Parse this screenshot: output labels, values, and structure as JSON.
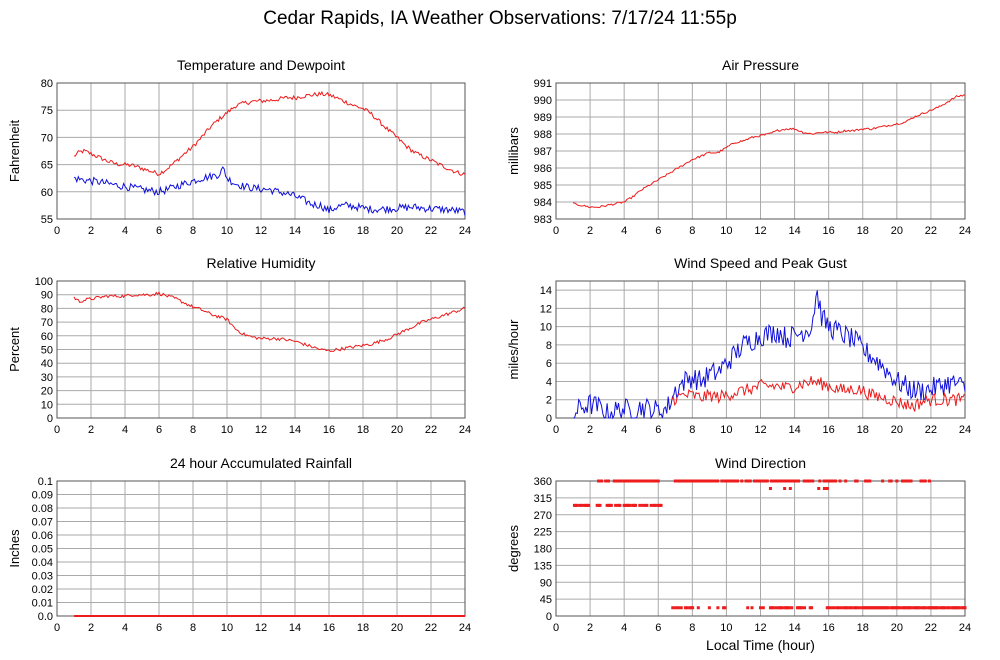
{
  "page": {
    "title": "Cedar Rapids, IA Weather Observations: 7/17/24 11:55p"
  },
  "colors": {
    "red": "#ee1c1c",
    "blue": "#1010dd",
    "grid": "#aaaaaa",
    "frame": "#555555"
  },
  "chart_data": [
    {
      "id": "temp",
      "type": "line",
      "title": "Temperature and Dewpoint",
      "xlabel": "",
      "ylabel": "Fahrenheit",
      "xlim": [
        0,
        24
      ],
      "ylim": [
        55,
        80
      ],
      "xticks": [
        0,
        2,
        4,
        6,
        8,
        10,
        12,
        14,
        16,
        18,
        20,
        22,
        24
      ],
      "yticks": [
        55,
        60,
        65,
        70,
        75,
        80
      ],
      "grid": true,
      "series": [
        {
          "color": "red",
          "noise": 0.4,
          "x": [
            1,
            1.3,
            1.6,
            2,
            2.5,
            3,
            3.5,
            4,
            4.5,
            5,
            5.5,
            6,
            6.5,
            7,
            7.5,
            8,
            8.5,
            9,
            9.5,
            10,
            10.5,
            11,
            11.5,
            12,
            12.5,
            13,
            13.5,
            14,
            14.5,
            15,
            15.5,
            16,
            16.5,
            17,
            17.5,
            18,
            18.5,
            19,
            19.5,
            20,
            20.5,
            21,
            21.5,
            22,
            22.5,
            23,
            23.5,
            24
          ],
          "y": [
            66.5,
            67.3,
            67.5,
            67,
            66.3,
            65.6,
            65.1,
            65,
            64.8,
            64.3,
            63.8,
            63.3,
            64.3,
            65.6,
            67,
            68.3,
            70,
            71.8,
            73.3,
            74.5,
            75.8,
            76.3,
            76.6,
            76.7,
            76.8,
            77,
            77.3,
            77.3,
            77.6,
            77.8,
            78,
            77.8,
            77.2,
            76.5,
            75.8,
            75.3,
            74.3,
            72.8,
            71.3,
            70,
            68.5,
            67.3,
            66.5,
            65.8,
            65,
            64.3,
            63.6,
            63.2
          ]
        },
        {
          "color": "blue",
          "noise": 0.7,
          "x": [
            1,
            1.5,
            2,
            2.5,
            3,
            3.5,
            4,
            4.5,
            5,
            5.5,
            6,
            6.5,
            7,
            7.5,
            8,
            8.5,
            9,
            9.5,
            9.8,
            10,
            10.5,
            11,
            11.5,
            12,
            12.5,
            13,
            13.5,
            14,
            14.5,
            15,
            15.5,
            16,
            16.5,
            17,
            17.5,
            18,
            18.5,
            19,
            19.5,
            20,
            20.5,
            21,
            21.5,
            22,
            22.5,
            23,
            23.5,
            24
          ],
          "y": [
            62.5,
            62.2,
            62,
            61.8,
            61.5,
            61.2,
            61,
            60.7,
            60.4,
            60.2,
            60,
            60.4,
            61,
            61.5,
            62,
            62.5,
            62.8,
            63.2,
            64.3,
            62.5,
            61.5,
            61,
            60.7,
            60.5,
            60.4,
            60,
            59.7,
            59.2,
            58.5,
            57.7,
            57.5,
            56.5,
            57.3,
            57.5,
            57.3,
            57,
            56.8,
            56.8,
            56.9,
            57,
            57.1,
            57.2,
            57,
            56.9,
            56.8,
            56.7,
            56.5,
            56.3
          ]
        }
      ]
    },
    {
      "id": "pressure",
      "type": "line",
      "title": "Air Pressure",
      "xlabel": "",
      "ylabel": "millibars",
      "xlim": [
        0,
        24
      ],
      "ylim": [
        983,
        991
      ],
      "xticks": [
        0,
        2,
        4,
        6,
        8,
        10,
        12,
        14,
        16,
        18,
        20,
        22,
        24
      ],
      "yticks": [
        983,
        984,
        985,
        986,
        987,
        988,
        989,
        990,
        991
      ],
      "grid": true,
      "series": [
        {
          "color": "red",
          "noise": 0.06,
          "x": [
            1,
            1.5,
            2,
            2.5,
            3,
            3.5,
            4,
            4.5,
            5,
            5.5,
            6,
            6.5,
            7,
            7.5,
            8,
            8.5,
            9,
            9.5,
            10,
            10.5,
            11,
            11.5,
            12,
            12.5,
            13,
            13.5,
            14,
            14.5,
            15,
            15.5,
            16,
            16.5,
            17,
            17.5,
            18,
            18.5,
            19,
            19.5,
            20,
            20.5,
            21,
            21.5,
            22,
            22.5,
            23,
            23.5,
            24
          ],
          "y": [
            983.9,
            983.8,
            983.7,
            983.7,
            983.8,
            983.9,
            984,
            984.3,
            984.7,
            985,
            985.3,
            985.6,
            985.9,
            986.2,
            986.5,
            986.7,
            986.9,
            986.9,
            987.2,
            987.5,
            987.6,
            987.8,
            987.9,
            988,
            988.2,
            988.3,
            988.3,
            988.1,
            988,
            988.1,
            988.1,
            988.1,
            988.2,
            988.2,
            988.3,
            988.3,
            988.4,
            988.5,
            988.6,
            988.7,
            989,
            989.2,
            989.4,
            989.6,
            989.9,
            990.2,
            990.3
          ]
        }
      ]
    },
    {
      "id": "rh",
      "type": "line",
      "title": "Relative Humidity",
      "xlabel": "",
      "ylabel": "Percent",
      "xlim": [
        0,
        24
      ],
      "ylim": [
        0,
        100
      ],
      "xticks": [
        0,
        2,
        4,
        6,
        8,
        10,
        12,
        14,
        16,
        18,
        20,
        22,
        24
      ],
      "yticks": [
        0,
        10,
        20,
        30,
        40,
        50,
        60,
        70,
        80,
        90,
        100
      ],
      "grid": true,
      "series": [
        {
          "color": "red",
          "noise": 1.2,
          "x": [
            1,
            1.3,
            1.6,
            2,
            2.5,
            3,
            3.5,
            4,
            4.5,
            5,
            5.5,
            6,
            6.5,
            7,
            7.5,
            8,
            8.5,
            9,
            9.5,
            10,
            10.5,
            11,
            11.5,
            12,
            12.5,
            13,
            13.5,
            14,
            14.5,
            15,
            15.5,
            16,
            16.5,
            17,
            17.5,
            18,
            18.5,
            19,
            19.5,
            20,
            20.5,
            21,
            21.5,
            22,
            22.5,
            23,
            23.5,
            24
          ],
          "y": [
            88,
            85,
            86,
            87,
            88,
            89,
            89,
            89,
            90,
            90,
            90,
            91,
            89,
            87,
            84,
            81,
            79,
            76,
            74,
            72,
            65,
            61,
            59,
            58,
            58,
            58,
            57,
            56,
            54,
            52,
            50,
            49,
            50,
            51,
            52,
            53,
            54,
            56,
            58,
            61,
            64,
            67,
            70,
            72,
            74,
            76,
            78,
            80
          ]
        }
      ]
    },
    {
      "id": "wind",
      "type": "line",
      "title": "Wind Speed and Peak Gust",
      "xlabel": "",
      "ylabel": "miles/hour",
      "xlim": [
        0,
        24
      ],
      "ylim": [
        0,
        15
      ],
      "xticks": [
        0,
        2,
        4,
        6,
        8,
        10,
        12,
        14,
        16,
        18,
        20,
        22,
        24
      ],
      "yticks": [
        0,
        2,
        4,
        6,
        8,
        10,
        12,
        14
      ],
      "grid": true,
      "series": [
        {
          "color": "blue",
          "noise": 1.2,
          "x": [
            1,
            1.5,
            2,
            2.5,
            3,
            3.5,
            4,
            4.5,
            5,
            5.5,
            6,
            6.5,
            7,
            7.5,
            8,
            8.5,
            9,
            9.5,
            10,
            10.5,
            11,
            11.5,
            12,
            12.5,
            13,
            13.5,
            14,
            14.5,
            15,
            15.3,
            15.6,
            16,
            16.5,
            17,
            17.5,
            18,
            18.5,
            19,
            19.5,
            20,
            20.5,
            21,
            21.5,
            22,
            22.5,
            23,
            23.5,
            24
          ],
          "y": [
            0.3,
            1.2,
            1.5,
            1.2,
            0.5,
            0.8,
            1,
            0.8,
            1.2,
            1,
            0.8,
            1,
            3,
            4,
            4.5,
            4,
            4.8,
            5,
            6,
            7,
            8,
            8.5,
            9,
            9.2,
            9.5,
            8.8,
            9,
            9.5,
            10,
            14,
            11,
            10,
            9.5,
            9,
            8.5,
            7.5,
            6.8,
            6,
            5,
            4,
            3.5,
            3,
            3,
            3.2,
            3.5,
            3.8,
            3.8,
            3.2
          ]
        },
        {
          "color": "red",
          "noise": 0.7,
          "x": [
            6.8,
            7.5,
            8,
            8.5,
            9,
            9.5,
            10,
            10.5,
            11,
            11.5,
            12,
            12.5,
            13,
            13.5,
            14,
            14.5,
            15,
            15.5,
            16,
            16.5,
            17,
            17.5,
            18,
            18.5,
            19,
            19.5,
            20,
            20.5,
            21,
            21.5,
            22,
            22.5,
            23,
            23.5,
            24
          ],
          "y": [
            2,
            2.5,
            2.5,
            2.2,
            2.5,
            2.3,
            2.5,
            2.8,
            3,
            3.2,
            3.5,
            3.5,
            3.5,
            3.3,
            3.5,
            3.8,
            4,
            3.8,
            3.5,
            3.2,
            3,
            3.2,
            3,
            2.5,
            2.3,
            2.1,
            1.8,
            1.5,
            1.3,
            1.8,
            2,
            2,
            2,
            2,
            2
          ]
        }
      ]
    },
    {
      "id": "rain",
      "type": "line",
      "title": "24 hour Accumulated Rainfall",
      "xlabel": "",
      "ylabel": "Inches",
      "xlim": [
        0,
        24
      ],
      "ylim": [
        0,
        0.1
      ],
      "xticks": [
        0,
        2,
        4,
        6,
        8,
        10,
        12,
        14,
        16,
        18,
        20,
        22,
        24
      ],
      "yticks": [
        0.0,
        0.01,
        0.02,
        0.03,
        0.04,
        0.05,
        0.06,
        0.07,
        0.08,
        0.09,
        0.1
      ],
      "ytick_labels": [
        "0.0",
        "0.01",
        "0.02",
        "0.03",
        "0.04",
        "0.05",
        "0.06",
        "0.07",
        "0.08",
        "0.09",
        "0.1"
      ],
      "grid": true,
      "series": [
        {
          "color": "red",
          "noise": 0,
          "x": [
            1,
            24
          ],
          "y": [
            0,
            0
          ]
        }
      ]
    },
    {
      "id": "wdir",
      "type": "scatter",
      "title": "Wind Direction",
      "xlabel": "Local Time (hour)",
      "ylabel": "degrees",
      "xlim": [
        0,
        24
      ],
      "ylim": [
        0,
        360
      ],
      "xticks": [
        0,
        2,
        4,
        6,
        8,
        10,
        12,
        14,
        16,
        18,
        20,
        22,
        24
      ],
      "yticks": [
        0,
        45,
        90,
        135,
        180,
        225,
        270,
        315,
        360
      ],
      "grid": true,
      "series": [
        {
          "color": "red",
          "clusters": [
            {
              "x": [
                1.0,
                6.3
              ],
              "y": 295,
              "density": 0.65
            },
            {
              "x": [
                2.5,
                4.0
              ],
              "y": 360,
              "density": 0.45
            },
            {
              "x": [
                4.0,
                6.0
              ],
              "y": 360,
              "density": 0.85
            },
            {
              "x": [
                7.0,
                9.4
              ],
              "y": 360,
              "density": 0.95
            },
            {
              "x": [
                9.4,
                16.5
              ],
              "y": 360,
              "density": 0.6
            },
            {
              "x": [
                16.5,
                22.0
              ],
              "y": 360,
              "density": 0.35
            },
            {
              "x": [
                12.0,
                16.0
              ],
              "y": 340,
              "density": 0.12
            },
            {
              "x": [
                6.6,
                8.5
              ],
              "y": 22,
              "density": 0.35
            },
            {
              "x": [
                9.0,
                16.0
              ],
              "y": 22,
              "density": 0.35
            },
            {
              "x": [
                16.0,
                24.0
              ],
              "y": 22,
              "density": 0.8
            }
          ]
        }
      ]
    }
  ]
}
